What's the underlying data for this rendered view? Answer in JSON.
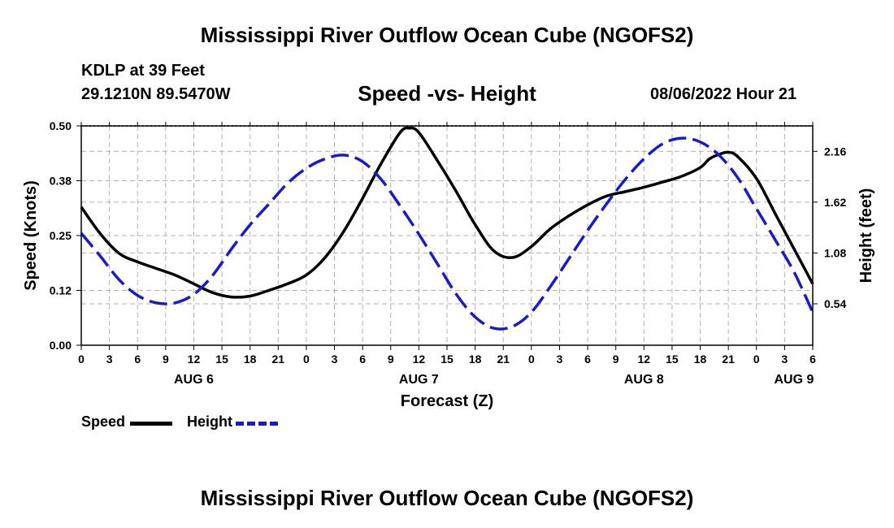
{
  "header": {
    "title": "Mississippi River Outflow Ocean Cube (NGOFS2)",
    "station": "KDLP at 39 Feet",
    "coords": "29.1210N  89.5470W",
    "subtitle": "Speed -vs- Height",
    "datetime": "08/06/2022 Hour 21"
  },
  "legend": {
    "speed_label": "Speed",
    "height_label": "Height"
  },
  "footer": {
    "title": "Mississippi River Outflow Ocean Cube (NGOFS2)"
  },
  "colors": {
    "speed": "#000000",
    "height": "#1a1acc",
    "grid": "#b0b0b0"
  },
  "chart_data": {
    "type": "line",
    "xlabel": "Forecast (Z)",
    "ylabel": "Speed (Knots)",
    "y2label": "Height (feet)",
    "xlim": [
      0,
      78
    ],
    "ylim": [
      0,
      0.5
    ],
    "y2lim": [
      0.1,
      2.43
    ],
    "x_ticks": [
      0,
      3,
      6,
      9,
      12,
      15,
      18,
      21,
      24,
      27,
      30,
      33,
      36,
      39,
      42,
      45,
      48,
      51,
      54,
      57,
      60,
      63,
      66,
      69,
      72,
      75,
      78
    ],
    "x_tick_labels": [
      "0",
      "3",
      "6",
      "9",
      "12",
      "15",
      "18",
      "21",
      "0",
      "3",
      "6",
      "9",
      "12",
      "15",
      "18",
      "21",
      "0",
      "3",
      "6",
      "9",
      "12",
      "15",
      "18",
      "21",
      "0",
      "3",
      "6"
    ],
    "y_ticks": [
      0.0,
      0.125,
      0.25,
      0.375,
      0.5
    ],
    "y_tick_labels": [
      "0.00",
      "0.12",
      "0.25",
      "0.38",
      "0.50"
    ],
    "y2_ticks": [
      0.54,
      1.08,
      1.62,
      2.16
    ],
    "y2_tick_labels": [
      "0.54",
      "1.08",
      "1.62",
      "2.16"
    ],
    "day_labels": [
      {
        "x": 12,
        "label": "AUG 6"
      },
      {
        "x": 36,
        "label": "AUG 7"
      },
      {
        "x": 60,
        "label": "AUG 8"
      },
      {
        "x": 76,
        "label": "AUG 9"
      }
    ],
    "series": [
      {
        "name": "Speed",
        "axis": "left",
        "style": "solid",
        "x": [
          0,
          2,
          4,
          6,
          8,
          10,
          12,
          14,
          16,
          18,
          20,
          22,
          24,
          26,
          28,
          30,
          32,
          34,
          35,
          36,
          38,
          40,
          42,
          44,
          46,
          48,
          50,
          52,
          54,
          56,
          58,
          60,
          62,
          64,
          66,
          67,
          68,
          69,
          70,
          72,
          74,
          76,
          78
        ],
        "y": [
          0.315,
          0.255,
          0.21,
          0.19,
          0.175,
          0.16,
          0.14,
          0.12,
          0.11,
          0.112,
          0.125,
          0.14,
          0.16,
          0.2,
          0.26,
          0.335,
          0.415,
          0.485,
          0.495,
          0.485,
          0.42,
          0.35,
          0.275,
          0.215,
          0.2,
          0.225,
          0.265,
          0.295,
          0.32,
          0.34,
          0.35,
          0.36,
          0.372,
          0.385,
          0.405,
          0.425,
          0.435,
          0.44,
          0.43,
          0.38,
          0.3,
          0.22,
          0.14
        ]
      },
      {
        "name": "Height",
        "axis": "right",
        "style": "dashed",
        "x": [
          0,
          2,
          4,
          6,
          8,
          10,
          12,
          14,
          16,
          18,
          20,
          22,
          24,
          26,
          28,
          30,
          32,
          34,
          36,
          38,
          40,
          42,
          44,
          46,
          48,
          50,
          52,
          54,
          56,
          58,
          60,
          62,
          64,
          66,
          68,
          70,
          72,
          74,
          76,
          78
        ],
        "y": [
          1.29,
          1.05,
          0.8,
          0.63,
          0.55,
          0.55,
          0.64,
          0.84,
          1.12,
          1.38,
          1.6,
          1.82,
          1.98,
          2.08,
          2.12,
          2.05,
          1.86,
          1.58,
          1.28,
          0.96,
          0.64,
          0.4,
          0.28,
          0.3,
          0.45,
          0.72,
          1.02,
          1.32,
          1.6,
          1.86,
          2.08,
          2.24,
          2.3,
          2.26,
          2.12,
          1.88,
          1.55,
          1.22,
          0.88,
          0.45
        ]
      }
    ]
  }
}
